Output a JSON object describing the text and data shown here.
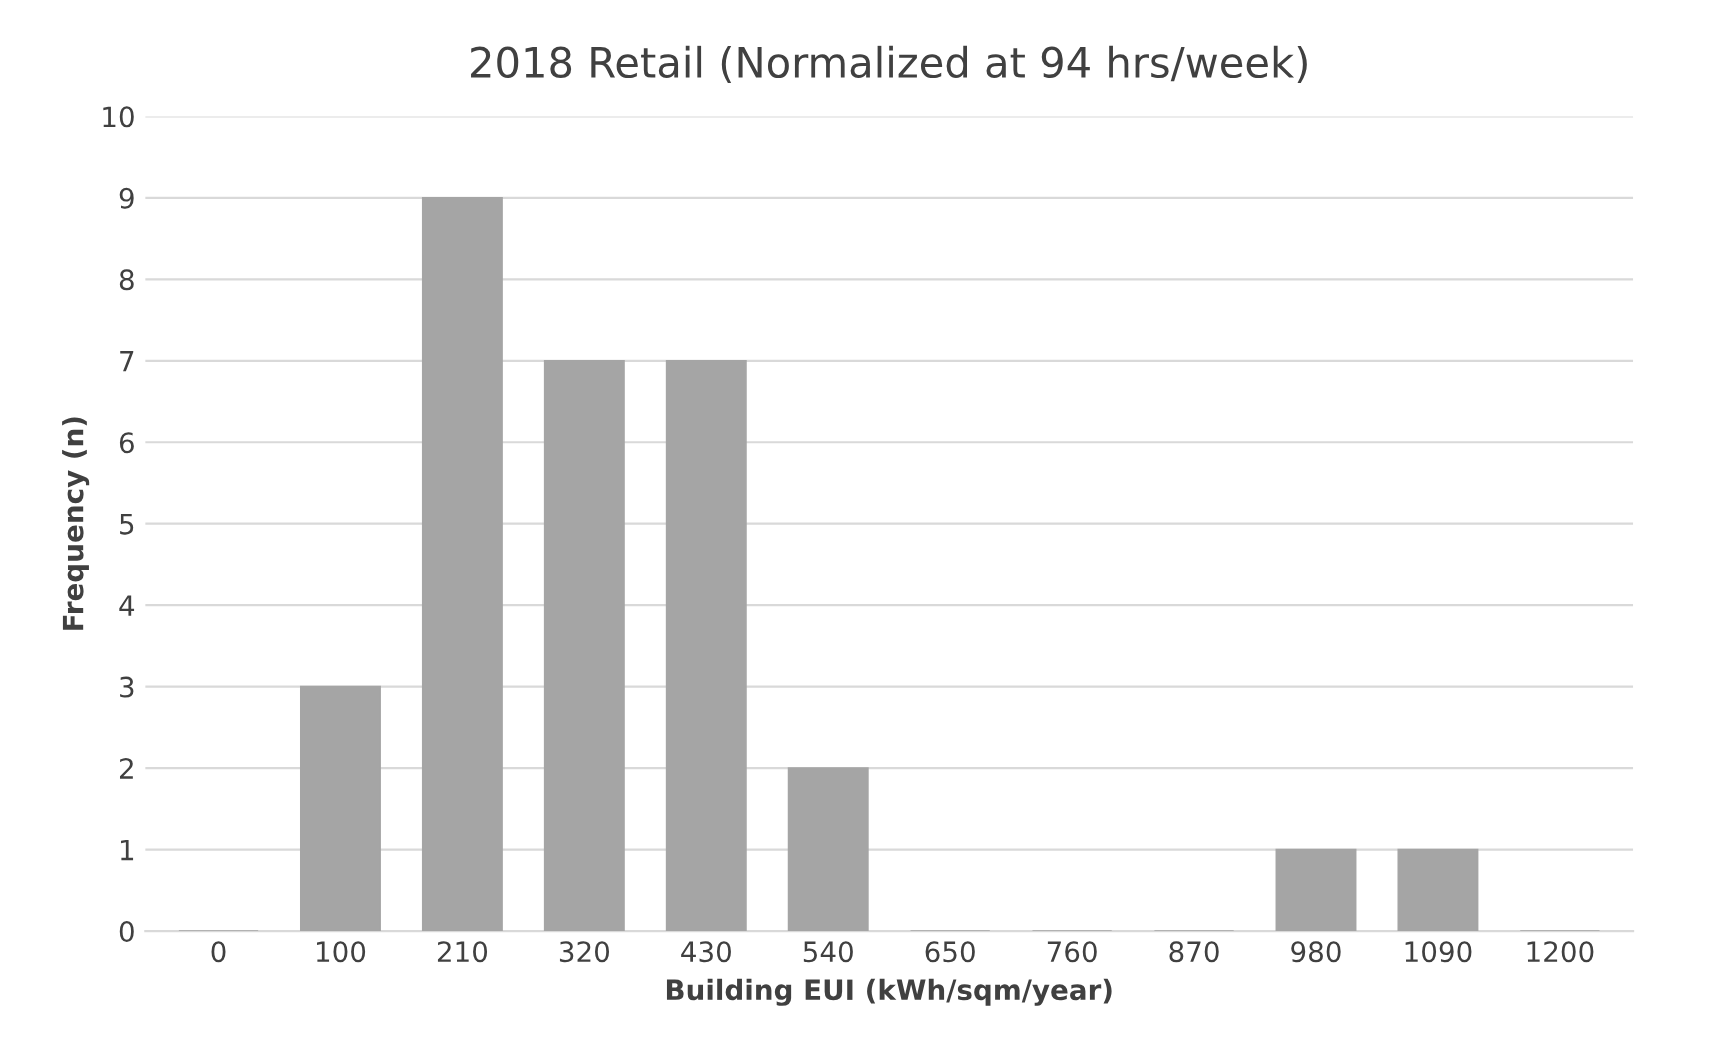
{
  "chart_data": {
    "type": "bar",
    "title": "2018 Retail (Normalized at 94 hrs/week)",
    "xlabel": "Building EUI (kWh/sqm/year)",
    "ylabel": "Frequency (n)",
    "categories": [
      "0",
      "100",
      "210",
      "320",
      "430",
      "540",
      "650",
      "760",
      "870",
      "980",
      "1090",
      "1200"
    ],
    "values": [
      0,
      3,
      9,
      7,
      7,
      2,
      0,
      0,
      0,
      1,
      1,
      0
    ],
    "color": "#a5a5a5",
    "ylim": [
      0,
      10
    ],
    "yticks": [
      0,
      1,
      2,
      3,
      4,
      5,
      6,
      7,
      8,
      9,
      10
    ],
    "grid": "y",
    "legend": false
  }
}
